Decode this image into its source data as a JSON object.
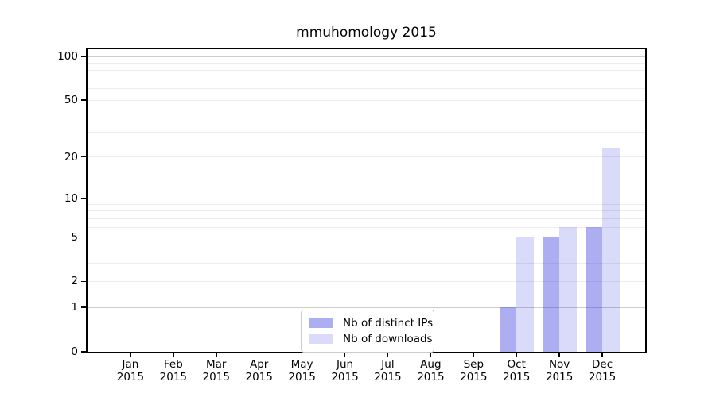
{
  "title": "mmuhomology 2015",
  "chart_data": {
    "type": "bar",
    "title": "mmuhomology 2015",
    "categories": [
      "Jan 2015",
      "Feb 2015",
      "Mar 2015",
      "Apr 2015",
      "May 2015",
      "Jun 2015",
      "Jul 2015",
      "Aug 2015",
      "Sep 2015",
      "Oct 2015",
      "Nov 2015",
      "Dec 2015"
    ],
    "series": [
      {
        "name": "Nb of distinct IPs",
        "values": [
          0,
          0,
          0,
          0,
          0,
          0,
          0,
          0,
          0,
          1,
          5,
          6
        ],
        "color": "rgba(60,60,225,0.42)"
      },
      {
        "name": "Nb of downloads",
        "values": [
          0,
          0,
          0,
          0,
          0,
          0,
          0,
          0,
          0,
          5,
          6,
          23
        ],
        "color": "rgba(60,60,225,0.19)"
      }
    ],
    "xlabel": "",
    "ylabel": "",
    "yscale": "log1p",
    "yticks": [
      0,
      1,
      2,
      5,
      10,
      20,
      50,
      100
    ],
    "ylim": [
      0,
      112
    ],
    "grid": "on",
    "grid_major": [
      1,
      10,
      100
    ],
    "grid_minor": [
      2,
      3,
      4,
      5,
      6,
      7,
      8,
      9,
      20,
      30,
      40,
      50,
      60,
      70,
      80,
      90
    ],
    "grid_major_color": "#cccccc",
    "grid_minor_color": "#ececec",
    "axis_color": "#000000",
    "legend_position": "lower center"
  }
}
